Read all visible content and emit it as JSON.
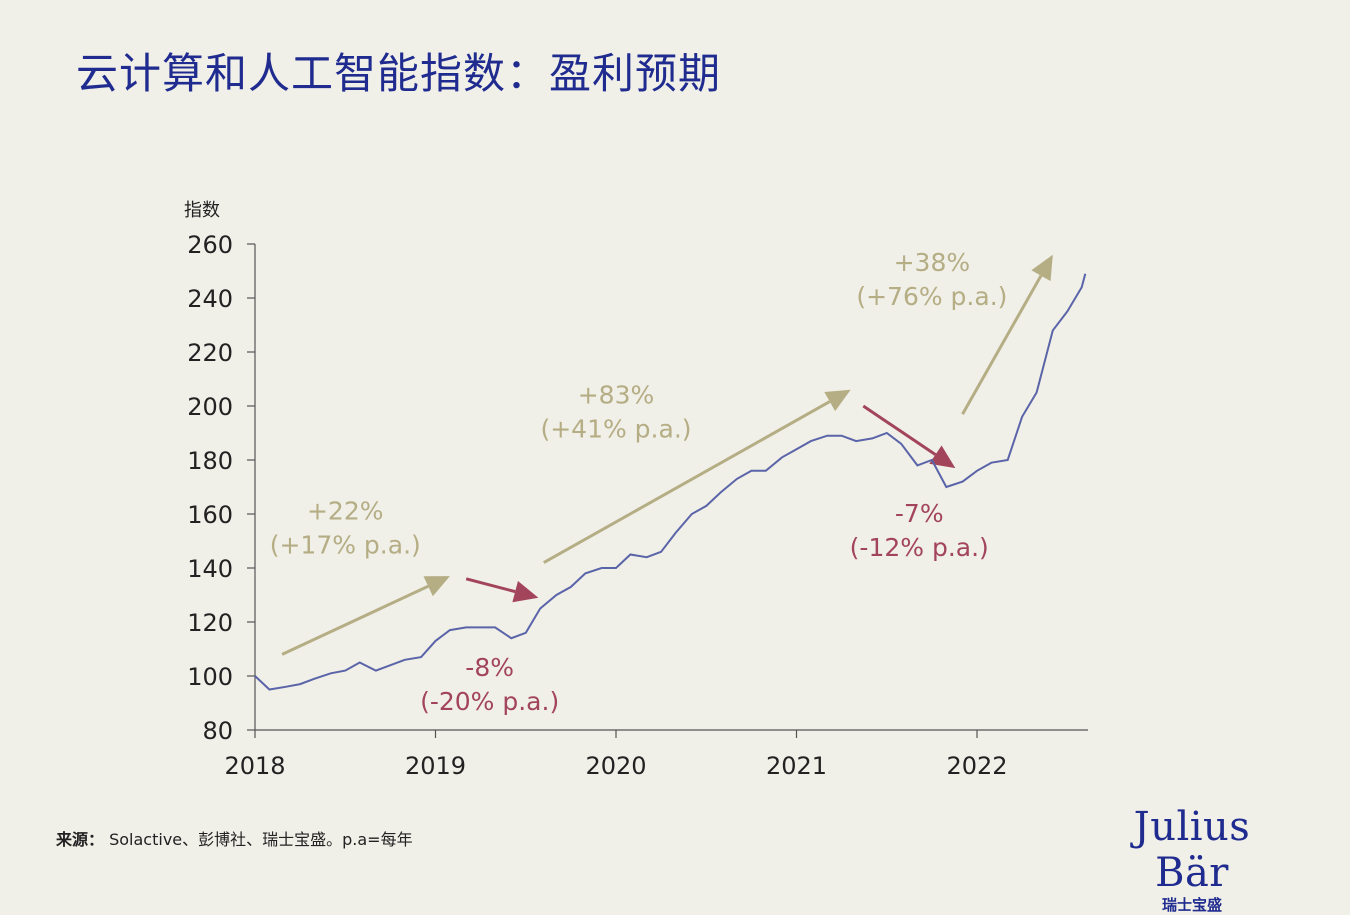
{
  "title": "云计算和人工智能指数：盈利预期",
  "source": {
    "label": "来源：",
    "text": "Solactive、彭博社、瑞士宝盛。p.a=每年"
  },
  "brand": {
    "name": "Julius Bär",
    "sub": "瑞士宝盛"
  },
  "colors": {
    "line": "#5a64a8",
    "up": "#b5ad84",
    "down": "#a3455a",
    "axis": "#555555",
    "title": "#1f2b8f"
  },
  "chart_data": {
    "type": "line",
    "ylabel": "指数",
    "ylim": [
      80,
      260
    ],
    "yticks": [
      80,
      100,
      120,
      140,
      160,
      180,
      200,
      220,
      240,
      260
    ],
    "xlim": [
      2018,
      2022.6
    ],
    "xticks": [
      2018,
      2019,
      2020,
      2021,
      2022
    ],
    "grid": false,
    "series": [
      {
        "x": [
          2018.0,
          2018.08,
          2018.17,
          2018.25,
          2018.33,
          2018.42,
          2018.5,
          2018.58,
          2018.67,
          2018.75,
          2018.83,
          2018.92,
          2019.0,
          2019.08,
          2019.17,
          2019.25,
          2019.33,
          2019.42,
          2019.5,
          2019.58,
          2019.67,
          2019.75,
          2019.83,
          2019.92,
          2020.0,
          2020.08,
          2020.17,
          2020.25,
          2020.33,
          2020.42,
          2020.5,
          2020.58,
          2020.67,
          2020.75,
          2020.83,
          2020.92,
          2021.0,
          2021.08,
          2021.17,
          2021.25,
          2021.33,
          2021.42,
          2021.5,
          2021.58,
          2021.67,
          2021.75,
          2021.83,
          2021.92,
          2022.0,
          2022.08,
          2022.17,
          2022.25,
          2022.33,
          2022.42,
          2022.5,
          2022.58,
          2022.6
        ],
        "values": [
          100,
          95,
          96,
          97,
          99,
          101,
          102,
          105,
          102,
          104,
          106,
          107,
          113,
          117,
          118,
          118,
          118,
          114,
          116,
          125,
          130,
          133,
          138,
          140,
          140,
          145,
          144,
          146,
          153,
          160,
          163,
          168,
          173,
          176,
          176,
          181,
          184,
          187,
          189,
          189,
          187,
          188,
          190,
          186,
          178,
          180,
          170,
          172,
          176,
          179,
          180,
          196,
          205,
          228,
          235,
          244,
          249
        ]
      }
    ],
    "annotations": [
      {
        "kind": "up",
        "from": [
          2018.15,
          108
        ],
        "to": [
          2019.08,
          137
        ],
        "label1": "+22%",
        "label2": "(+17% p.a.)",
        "at": [
          2018.5,
          158
        ]
      },
      {
        "kind": "down",
        "from": [
          2019.17,
          136
        ],
        "to": [
          2019.57,
          129
        ],
        "label1": "-8%",
        "label2": "(-20% p.a.)",
        "at": [
          2019.3,
          100
        ]
      },
      {
        "kind": "up",
        "from": [
          2019.6,
          142
        ],
        "to": [
          2021.3,
          206
        ],
        "label1": "+83%",
        "label2": "(+41% p.a.)",
        "at": [
          2020.0,
          201
        ]
      },
      {
        "kind": "down",
        "from": [
          2021.37,
          200
        ],
        "to": [
          2021.88,
          177
        ],
        "label1": "-7%",
        "label2": "(-12% p.a.)",
        "at": [
          2021.68,
          157
        ]
      },
      {
        "kind": "up",
        "from": [
          2021.92,
          197
        ],
        "to": [
          2022.42,
          256
        ],
        "label1": "+38%",
        "label2": "(+76% p.a.)",
        "at": [
          2021.75,
          250
        ]
      }
    ]
  }
}
